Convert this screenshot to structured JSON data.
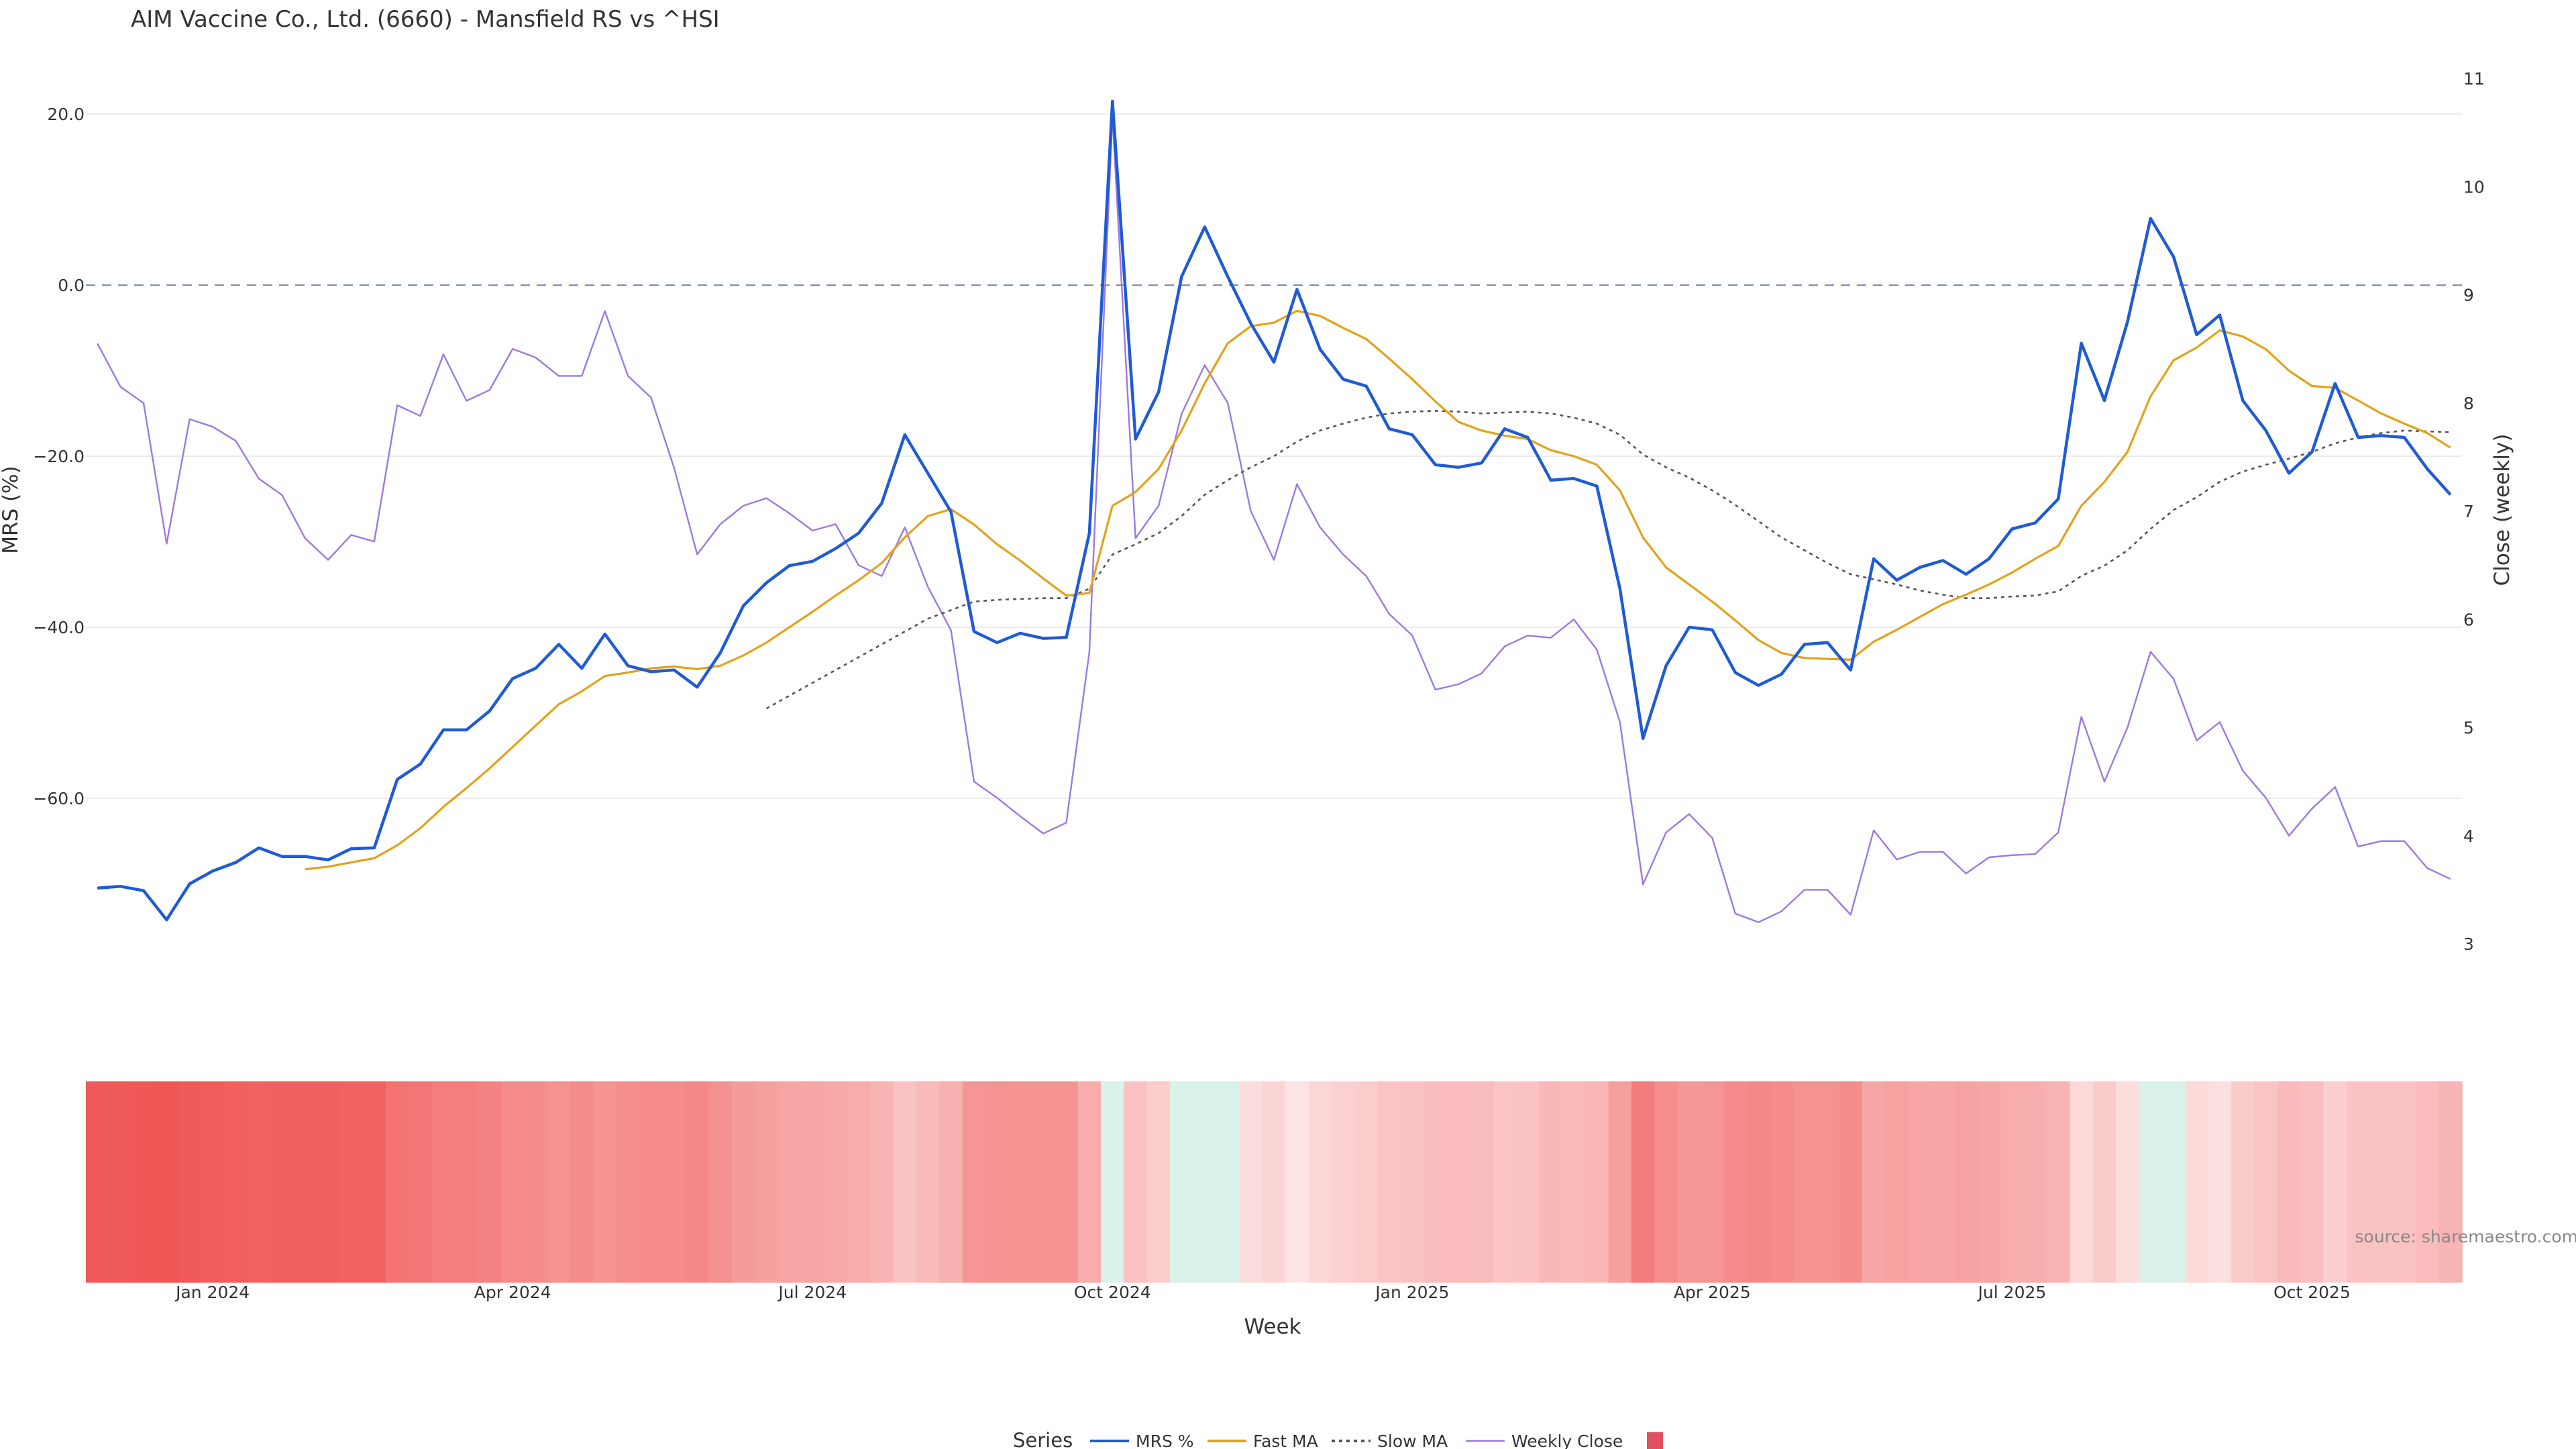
{
  "chart_data": {
    "type": "line",
    "title": "AIM Vaccine Co., Ltd. (6660) - Mansfield RS vs ^HSI",
    "xlabel": "Week",
    "ylabel": "MRS (%)",
    "y2label": "Close (weekly)",
    "ylim": [
      -80,
      25
    ],
    "y2lim": [
      2.3,
      11.3
    ],
    "y_ticks": [
      20,
      0,
      -20,
      -40,
      -60
    ],
    "y_tick_labels": [
      "20.0",
      "0.0",
      "−20.0",
      "−40.0",
      "−60.0"
    ],
    "y2_ticks": [
      3,
      4,
      5,
      6,
      7,
      8,
      9,
      10,
      11
    ],
    "x_tick_labels": [
      {
        "label": "Jan 2024",
        "week": 5
      },
      {
        "label": "Apr 2024",
        "week": 18
      },
      {
        "label": "Jul 2024",
        "week": 31
      },
      {
        "label": "Oct 2024",
        "week": 44
      },
      {
        "label": "Jan 2025",
        "week": 57
      },
      {
        "label": "Apr 2025",
        "week": 70
      },
      {
        "label": "Jul 2025",
        "week": 83
      },
      {
        "label": "Oct 2025",
        "week": 96
      }
    ],
    "week_count": 103,
    "zero_line": 0,
    "series": [
      {
        "name": "MRS %",
        "color": "#1f5bd6",
        "axis": "left",
        "style": "solid",
        "values": [
          -70.5,
          -70.3,
          -70.8,
          -74.2,
          -70.0,
          -68.5,
          -67.5,
          -65.8,
          -66.8,
          -66.8,
          -67.2,
          -65.9,
          -65.8,
          -57.8,
          -56.0,
          -52.0,
          -52.0,
          -49.8,
          -46.0,
          -44.8,
          -42.0,
          -44.8,
          -40.8,
          -44.5,
          -45.2,
          -45.0,
          -47.0,
          -43.0,
          -37.5,
          -34.8,
          -32.8,
          -32.3,
          -30.8,
          -29.0,
          -25.5,
          -17.5,
          -22.0,
          -26.5,
          -40.5,
          -41.8,
          -40.7,
          -41.3,
          -41.2,
          -29.0,
          21.5,
          -18.0,
          -12.5,
          1.0,
          6.8,
          1.0,
          -4.5,
          -9.0,
          -0.5,
          -7.5,
          -11.0,
          -11.8,
          -16.8,
          -17.5,
          -21.0,
          -21.3,
          -20.8,
          -16.8,
          -17.8,
          -22.8,
          -22.6,
          -23.5,
          -35.5,
          -53.0,
          -44.5,
          -40.0,
          -40.3,
          -45.3,
          -46.8,
          -45.5,
          -42.0,
          -41.8,
          -45.0,
          -32.0,
          -34.5,
          -33.0,
          -32.2,
          -33.8,
          -32.0,
          -28.5,
          -27.8,
          -25.0,
          -6.8,
          -13.5,
          -4.3,
          7.8,
          3.3,
          -5.8,
          -3.5,
          -13.5,
          -17.0,
          -22.0,
          -19.5,
          -11.5,
          -17.8,
          -17.6,
          -17.8,
          -21.5,
          -24.5
        ]
      },
      {
        "name": "Fast MA",
        "color": "#e3a21a",
        "axis": "left",
        "style": "solid",
        "values": [
          null,
          null,
          null,
          null,
          null,
          null,
          null,
          null,
          null,
          -68.3,
          -68.0,
          -67.5,
          -67.0,
          -65.5,
          -63.5,
          -61.0,
          -58.8,
          -56.5,
          -54.0,
          -51.5,
          -49.0,
          -47.5,
          -45.7,
          -45.3,
          -44.8,
          -44.6,
          -44.9,
          -44.5,
          -43.3,
          -41.8,
          -40.0,
          -38.2,
          -36.3,
          -34.5,
          -32.5,
          -29.5,
          -27.0,
          -26.2,
          -28.0,
          -30.3,
          -32.2,
          -34.3,
          -36.3,
          -36.0,
          -25.8,
          -24.2,
          -21.5,
          -17.0,
          -11.5,
          -6.8,
          -4.8,
          -4.4,
          -3.0,
          -3.6,
          -5.0,
          -6.3,
          -8.6,
          -11.0,
          -13.6,
          -16.0,
          -17.0,
          -17.6,
          -18.0,
          -19.3,
          -20.0,
          -21.0,
          -24.0,
          -29.5,
          -33.0,
          -35.0,
          -37.0,
          -39.2,
          -41.5,
          -43.0,
          -43.6,
          -43.7,
          -43.8,
          -41.7,
          -40.3,
          -38.8,
          -37.3,
          -36.2,
          -35.0,
          -33.6,
          -32.0,
          -30.5,
          -25.8,
          -23.0,
          -19.5,
          -13.0,
          -8.8,
          -7.3,
          -5.3,
          -6.0,
          -7.5,
          -10.0,
          -11.8,
          -12.0,
          -13.5,
          -15.0,
          -16.2,
          -17.3,
          -19.0
        ]
      },
      {
        "name": "Slow MA",
        "color": "#555555",
        "axis": "left",
        "style": "dotted",
        "values": [
          null,
          null,
          null,
          null,
          null,
          null,
          null,
          null,
          null,
          null,
          null,
          null,
          null,
          null,
          null,
          null,
          null,
          null,
          null,
          null,
          null,
          null,
          null,
          null,
          null,
          null,
          null,
          null,
          null,
          -49.5,
          -48.0,
          -46.5,
          -45.0,
          -43.5,
          -42.0,
          -40.5,
          -39.0,
          -38.0,
          -37.0,
          -36.8,
          -36.7,
          -36.6,
          -36.6,
          -35.5,
          -31.5,
          -30.3,
          -29.0,
          -27.0,
          -24.5,
          -22.8,
          -21.3,
          -20.0,
          -18.3,
          -17.0,
          -16.2,
          -15.5,
          -15.0,
          -14.8,
          -14.7,
          -14.8,
          -15.0,
          -14.9,
          -14.8,
          -15.0,
          -15.5,
          -16.2,
          -17.5,
          -19.8,
          -21.3,
          -22.5,
          -24.0,
          -25.7,
          -27.6,
          -29.5,
          -31.0,
          -32.5,
          -33.8,
          -34.4,
          -35.0,
          -35.7,
          -36.2,
          -36.6,
          -36.6,
          -36.4,
          -36.3,
          -35.8,
          -34.0,
          -32.8,
          -31.0,
          -28.5,
          -26.3,
          -24.8,
          -23.0,
          -21.8,
          -21.0,
          -20.3,
          -19.5,
          -18.5,
          -17.8,
          -17.3,
          -17.0,
          -17.1,
          -17.2
        ]
      },
      {
        "name": "Weekly Close",
        "color": "#9c79e0",
        "axis": "right",
        "style": "solid",
        "values": [
          8.55,
          8.15,
          8.0,
          6.7,
          7.85,
          7.78,
          7.65,
          7.3,
          7.15,
          6.75,
          6.55,
          6.78,
          6.72,
          7.98,
          7.88,
          8.45,
          8.02,
          8.12,
          8.5,
          8.42,
          8.25,
          8.25,
          8.85,
          8.25,
          8.05,
          7.4,
          6.6,
          6.88,
          7.05,
          7.12,
          6.98,
          6.82,
          6.88,
          6.5,
          6.4,
          6.85,
          6.3,
          5.9,
          4.5,
          4.35,
          4.18,
          4.02,
          4.12,
          5.7,
          10.65,
          6.75,
          7.05,
          7.9,
          8.35,
          8.0,
          7.0,
          6.55,
          7.25,
          6.85,
          6.6,
          6.4,
          6.05,
          5.85,
          5.35,
          5.4,
          5.5,
          5.75,
          5.85,
          5.83,
          6.0,
          5.72,
          5.05,
          3.55,
          4.03,
          4.2,
          3.98,
          3.28,
          3.2,
          3.3,
          3.5,
          3.5,
          3.27,
          4.05,
          3.78,
          3.85,
          3.85,
          3.65,
          3.8,
          3.82,
          3.83,
          4.03,
          5.1,
          4.5,
          5.0,
          5.7,
          5.45,
          4.88,
          5.05,
          4.6,
          4.35,
          4.0,
          4.25,
          4.45,
          3.9,
          3.95,
          3.95,
          3.7,
          3.6
        ]
      }
    ],
    "heatmap": {
      "description": "MRS-coloured week strip",
      "positive_color": "#d9f2ea",
      "negative_color": "#f05656"
    },
    "legend": {
      "title": "Series",
      "placement": "bottom-center",
      "items": [
        "MRS %",
        "Fast MA",
        "Slow MA",
        "Weekly Close",
        ""
      ],
      "swatch_color": "#e05060"
    },
    "source": "source: sharemaestro.com"
  }
}
